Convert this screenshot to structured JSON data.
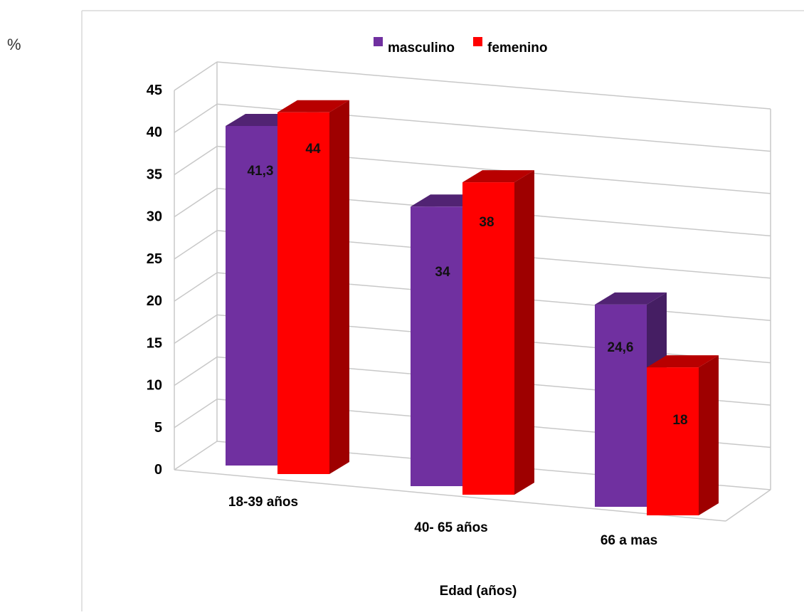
{
  "chart_data": {
    "type": "bar",
    "ylabel": "%",
    "xlabel": "Edad (años)",
    "categories": [
      "18-39 años",
      "40- 65 años",
      "66 a mas"
    ],
    "series": [
      {
        "name": "masculino",
        "color": "#7030a0",
        "values": [
          41.3,
          34,
          24.6
        ],
        "labels": [
          "41,3",
          "34",
          "24,6"
        ]
      },
      {
        "name": "femenino",
        "color": "#ff0000",
        "values": [
          44,
          38,
          18
        ],
        "labels": [
          "44",
          "38",
          "18"
        ]
      }
    ],
    "ylim": [
      0,
      45
    ],
    "yticks": [
      "0",
      "5",
      "10",
      "15",
      "20",
      "25",
      "30",
      "35",
      "40",
      "45"
    ],
    "grid": true,
    "legend": "top"
  }
}
